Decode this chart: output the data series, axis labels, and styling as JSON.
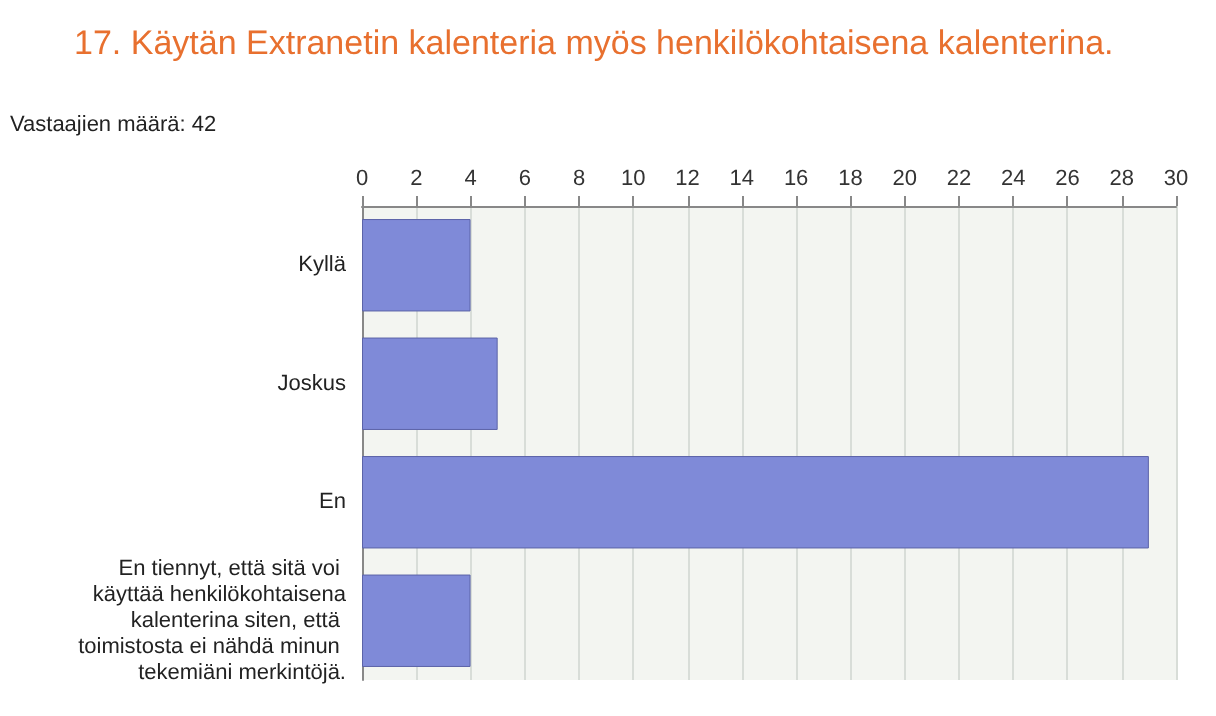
{
  "chart_data": {
    "type": "bar",
    "orientation": "horizontal",
    "title": "17. Käytän Extranetin kalenteria myös henkilökohtaisena kalenterina.",
    "subtitle": "Vastaajien määrä: 42",
    "categories": [
      "Kyllä",
      "Joskus",
      "En",
      "En tiennyt, että sitä voi käyttää henkilökohtaisena kalenterina siten, että toimistosta ei nähdä minun tekemiäni merkintöjä."
    ],
    "values": [
      4,
      5,
      29,
      4
    ],
    "color": "#7f8ad8",
    "xlim": [
      0,
      30
    ],
    "xticks": [
      0,
      2,
      4,
      6,
      8,
      10,
      12,
      14,
      16,
      18,
      20,
      22,
      24,
      26,
      28,
      30
    ],
    "grid": "x"
  }
}
